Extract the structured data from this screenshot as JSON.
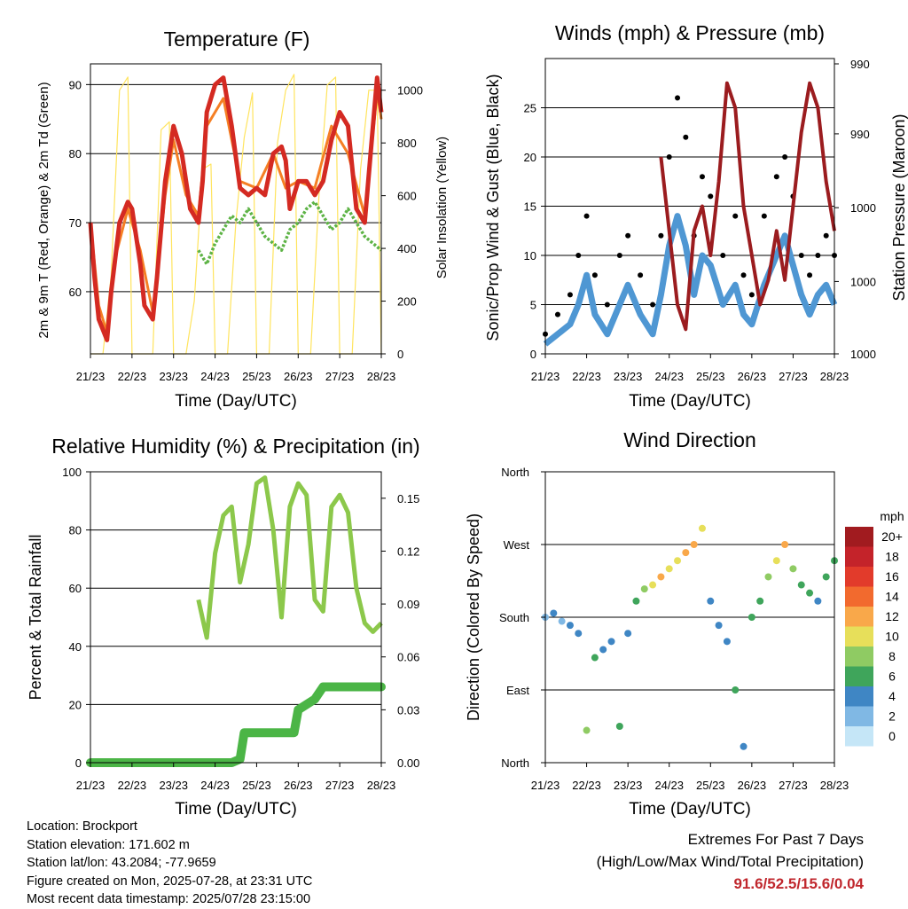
{
  "x_ticks": [
    "21/23",
    "22/23",
    "23/23",
    "24/23",
    "25/23",
    "26/23",
    "27/23",
    "28/23"
  ],
  "xlabel": "Time (Day/UTC)",
  "colors": {
    "temp": "#d42a22",
    "temp9m": "#f57f24",
    "dew": "#5db345",
    "solar": "#ffe45e",
    "gust": "#000000",
    "wind": "#4f97d3",
    "pressure": "#9b1c1f",
    "rh": "#8cc84b",
    "precip": "#4bb546"
  },
  "panels": {
    "temperature": {
      "title": "Temperature (F)",
      "ylabel_left": "2m & 9m T (Red, Orange) & 2m Td (Green)",
      "ylabel_right": "Solar Insolation (Yellow)",
      "y_ticks": [
        "60",
        "70",
        "80",
        "90"
      ],
      "y2_ticks": [
        "0",
        "200",
        "400",
        "600",
        "800",
        "1000"
      ]
    },
    "winds": {
      "title": "Winds (mph) & Pressure (mb)",
      "ylabel_left": "Sonic/Prop Wind & Gust (Blue, Black)",
      "ylabel_right": "Station Pressure (Maroon)",
      "y_ticks": [
        "0",
        "5",
        "10",
        "15",
        "20",
        "25"
      ],
      "y2_ticks": [
        "990",
        "990",
        "1000",
        "1000",
        "1000"
      ]
    },
    "humidity": {
      "title": "Relative Humidity (%) & Precipitation (in)",
      "ylabel_left": "Percent & Total Rainfall",
      "y_ticks": [
        "0",
        "20",
        "40",
        "60",
        "80",
        "100"
      ],
      "y2_ticks": [
        "0.00",
        "0.03",
        "0.06",
        "0.09",
        "0.12",
        "0.15"
      ]
    },
    "direction": {
      "title": "Wind Direction",
      "ylabel_left": "Direction (Colored By Speed)",
      "y_ticks": [
        "North",
        "East",
        "South",
        "West",
        "North"
      ],
      "legend_title": "mph",
      "legend_labels": [
        "20+",
        "18",
        "16",
        "14",
        "12",
        "10",
        "8",
        "6",
        "4",
        "2",
        "0"
      ],
      "legend_colors": [
        "#a11b1f",
        "#c4232a",
        "#e23b2b",
        "#f26a2e",
        "#f9a84a",
        "#e7df5a",
        "#8fcb63",
        "#3fa55b",
        "#3f86c4",
        "#80b8e4",
        "#c5e6f7"
      ]
    }
  },
  "chart_data": [
    {
      "type": "line",
      "title": "Temperature (F)",
      "xlabel": "Time (Day/UTC)",
      "ylabel": "2m & 9m T (Red, Orange) & 2m Td (Green)",
      "ylabel_right": "Solar Insolation (Yellow)",
      "x_unit": "days since 21/23",
      "xlim": [
        0,
        7
      ],
      "ylim": [
        51,
        93
      ],
      "ylim_right": [
        0,
        1100
      ],
      "series": [
        {
          "name": "2m T",
          "axis": "left",
          "x": [
            0,
            0.1,
            0.2,
            0.4,
            0.5,
            0.7,
            0.9,
            1.0,
            1.2,
            1.3,
            1.5,
            1.6,
            1.8,
            2.0,
            2.2,
            2.4,
            2.6,
            2.7,
            2.8,
            3.0,
            3.2,
            3.4,
            3.6,
            3.8,
            4.0,
            4.2,
            4.4,
            4.6,
            4.7,
            4.8,
            5.0,
            5.2,
            5.4,
            5.6,
            5.8,
            6.0,
            6.2,
            6.4,
            6.6,
            6.8,
            6.9,
            7.0
          ],
          "y": [
            70,
            62,
            56,
            53,
            60,
            70,
            73,
            72,
            64,
            58,
            56,
            62,
            76,
            84,
            80,
            72,
            70,
            76,
            86,
            90,
            91,
            84,
            75,
            74,
            75,
            74,
            80,
            81,
            79,
            72,
            76,
            76,
            74,
            76,
            82,
            86,
            84,
            72,
            70,
            84,
            91,
            86
          ]
        },
        {
          "name": "9m T",
          "axis": "left",
          "x": [
            0,
            0.2,
            0.4,
            0.6,
            0.9,
            1.2,
            1.5,
            1.8,
            2.0,
            2.3,
            2.6,
            2.8,
            3.2,
            3.6,
            4.0,
            4.4,
            4.7,
            5.0,
            5.4,
            5.8,
            6.2,
            6.6,
            6.9,
            7.0
          ],
          "y": [
            70,
            58,
            54,
            65,
            72,
            66,
            57,
            74,
            82,
            74,
            71,
            84,
            88,
            76,
            75,
            80,
            75,
            76,
            75,
            84,
            80,
            71,
            89,
            85
          ]
        },
        {
          "name": "2m Td",
          "axis": "left",
          "x": [
            2.6,
            2.8,
            3.0,
            3.2,
            3.4,
            3.6,
            3.8,
            4.0,
            4.2,
            4.4,
            4.6,
            4.8,
            5.0,
            5.2,
            5.4,
            5.6,
            5.8,
            6.0,
            6.2,
            6.4,
            6.6,
            6.8,
            7.0
          ],
          "y": [
            66,
            64,
            67,
            69,
            71,
            70,
            72,
            70,
            68,
            67,
            66,
            69,
            70,
            72,
            73,
            71,
            69,
            70,
            72,
            70,
            68,
            67,
            66
          ]
        },
        {
          "name": "Solar",
          "axis": "right",
          "x": [
            0,
            0.3,
            0.5,
            0.7,
            0.9,
            1.0,
            1.3,
            1.5,
            1.7,
            1.9,
            2.0,
            2.3,
            2.5,
            2.7,
            2.9,
            3.0,
            3.3,
            3.5,
            3.7,
            3.9,
            4.0,
            4.3,
            4.5,
            4.7,
            4.9,
            5.0,
            5.3,
            5.5,
            5.7,
            5.9,
            6.0,
            6.3,
            6.5,
            6.7,
            6.9,
            7.0
          ],
          "y": [
            0,
            0,
            300,
            1000,
            1050,
            0,
            0,
            0,
            850,
            880,
            0,
            0,
            200,
            700,
            720,
            0,
            0,
            500,
            820,
            990,
            0,
            0,
            800,
            1000,
            1060,
            0,
            0,
            600,
            1020,
            1050,
            0,
            0,
            700,
            1000,
            1000,
            0
          ]
        }
      ]
    },
    {
      "type": "line",
      "title": "Winds (mph) & Pressure (mb)",
      "xlabel": "Time (Day/UTC)",
      "ylabel": "Sonic/Prop Wind & Gust (Blue, Black)",
      "ylabel_right": "Station Pressure (Maroon)",
      "x_unit": "days since 21/23",
      "xlim": [
        0,
        7
      ],
      "ylim": [
        0,
        30
      ],
      "ylim_right": [
        988,
        1000
      ],
      "series": [
        {
          "name": "Gust",
          "axis": "left",
          "x": [
            0,
            0.3,
            0.6,
            0.8,
            1.0,
            1.2,
            1.5,
            1.8,
            2.0,
            2.3,
            2.6,
            2.8,
            3.0,
            3.2,
            3.4,
            3.6,
            3.8,
            4.0,
            4.3,
            4.6,
            4.8,
            5.0,
            5.3,
            5.6,
            5.8,
            6.0,
            6.2,
            6.4,
            6.6,
            6.8,
            7.0
          ],
          "y": [
            2,
            4,
            6,
            10,
            14,
            8,
            5,
            10,
            12,
            8,
            5,
            12,
            20,
            26,
            22,
            12,
            18,
            16,
            10,
            14,
            8,
            6,
            14,
            18,
            20,
            16,
            10,
            8,
            10,
            12,
            10
          ]
        },
        {
          "name": "Wind",
          "axis": "left",
          "x": [
            0,
            0.3,
            0.6,
            0.8,
            1.0,
            1.2,
            1.5,
            1.8,
            2.0,
            2.3,
            2.6,
            2.8,
            3.0,
            3.2,
            3.4,
            3.6,
            3.8,
            4.0,
            4.3,
            4.6,
            4.8,
            5.0,
            5.3,
            5.6,
            5.8,
            6.0,
            6.2,
            6.4,
            6.6,
            6.8,
            7.0
          ],
          "y": [
            1,
            2,
            3,
            5,
            8,
            4,
            2,
            5,
            7,
            4,
            2,
            6,
            11,
            14,
            11,
            6,
            10,
            9,
            5,
            7,
            4,
            3,
            7,
            10,
            12,
            9,
            6,
            4,
            6,
            7,
            5
          ]
        },
        {
          "name": "Pressure",
          "axis": "right",
          "x": [
            2.8,
            3.0,
            3.2,
            3.4,
            3.6,
            3.8,
            4.0,
            4.2,
            4.4,
            4.6,
            4.8,
            5.0,
            5.2,
            5.4,
            5.6,
            5.8,
            6.0,
            6.2,
            6.4,
            6.6,
            6.8,
            7.0
          ],
          "y": [
            996,
            993,
            990,
            989,
            993,
            994,
            992,
            995,
            999,
            998,
            994,
            992,
            990,
            991,
            993,
            991,
            994,
            997,
            999,
            998,
            995,
            993
          ]
        }
      ]
    },
    {
      "type": "line",
      "title": "Relative Humidity (%) & Precipitation (in)",
      "xlabel": "Time (Day/UTC)",
      "ylabel": "Percent & Total Rainfall",
      "x_unit": "days since 21/23",
      "xlim": [
        0,
        7
      ],
      "ylim": [
        0,
        100
      ],
      "ylim_right": [
        0,
        0.165
      ],
      "series": [
        {
          "name": "RH",
          "axis": "left",
          "x": [
            2.6,
            2.8,
            3.0,
            3.2,
            3.4,
            3.6,
            3.8,
            4.0,
            4.2,
            4.4,
            4.6,
            4.8,
            5.0,
            5.2,
            5.4,
            5.6,
            5.8,
            6.0,
            6.2,
            6.4,
            6.6,
            6.8,
            7.0
          ],
          "y": [
            56,
            43,
            72,
            85,
            88,
            62,
            75,
            96,
            98,
            80,
            50,
            88,
            96,
            92,
            56,
            52,
            88,
            92,
            86,
            60,
            48,
            45,
            48
          ]
        },
        {
          "name": "Precip",
          "axis": "right",
          "x": [
            0,
            1.0,
            2.0,
            3.0,
            3.4,
            3.6,
            3.7,
            4.0,
            4.5,
            4.9,
            5.0,
            5.2,
            5.4,
            5.6,
            6.0,
            6.5,
            7.0
          ],
          "y": [
            0.0,
            0.0,
            0.0,
            0.0,
            0.0,
            0.002,
            0.017,
            0.017,
            0.017,
            0.017,
            0.03,
            0.033,
            0.036,
            0.043,
            0.043,
            0.043,
            0.043
          ]
        }
      ]
    },
    {
      "type": "scatter",
      "title": "Wind Direction",
      "xlabel": "Time (Day/UTC)",
      "ylabel": "Direction (Colored By Speed)",
      "x_unit": "days since 21/23",
      "xlim": [
        0,
        7
      ],
      "y_categories": [
        "North",
        "East",
        "South",
        "West",
        "North"
      ],
      "ylim": [
        0,
        360
      ],
      "series": [
        {
          "name": "Direction",
          "x": [
            0,
            0.2,
            0.4,
            0.6,
            0.8,
            1.0,
            1.2,
            1.4,
            1.6,
            1.8,
            2.0,
            2.2,
            2.4,
            2.6,
            2.8,
            3.0,
            3.2,
            3.4,
            3.6,
            3.8,
            4.0,
            4.2,
            4.4,
            4.6,
            4.8,
            5.0,
            5.2,
            5.4,
            5.6,
            5.8,
            6.0,
            6.2,
            6.4,
            6.6,
            6.8,
            7.0
          ],
          "y": [
            180,
            185,
            175,
            170,
            160,
            40,
            130,
            140,
            150,
            45,
            160,
            200,
            215,
            220,
            230,
            240,
            250,
            260,
            270,
            290,
            200,
            170,
            150,
            90,
            20,
            180,
            200,
            230,
            250,
            270,
            240,
            220,
            210,
            200,
            230,
            250
          ],
          "speed": [
            2,
            3,
            2,
            3,
            4,
            8,
            5,
            4,
            3,
            6,
            4,
            6,
            8,
            10,
            12,
            10,
            9,
            11,
            12,
            10,
            4,
            3,
            4,
            6,
            4,
            5,
            6,
            8,
            10,
            12,
            8,
            6,
            5,
            4,
            6,
            5
          ]
        }
      ]
    }
  ],
  "footer": {
    "location": "Location: Brockport",
    "elevation": "Station elevation: 171.602 m",
    "latlon": "Station lat/lon: 43.2084; -77.9659",
    "created": "Figure created on Mon, 2025-07-28, at 23:31 UTC",
    "recent": "Most recent data timestamp: 2025/07/28 23:15:00"
  },
  "extremes": {
    "title": "Extremes For Past 7 Days",
    "subtitle": "(High/Low/Max Wind/Total Precipitation)",
    "values": "91.6/52.5/15.6/0.04"
  }
}
